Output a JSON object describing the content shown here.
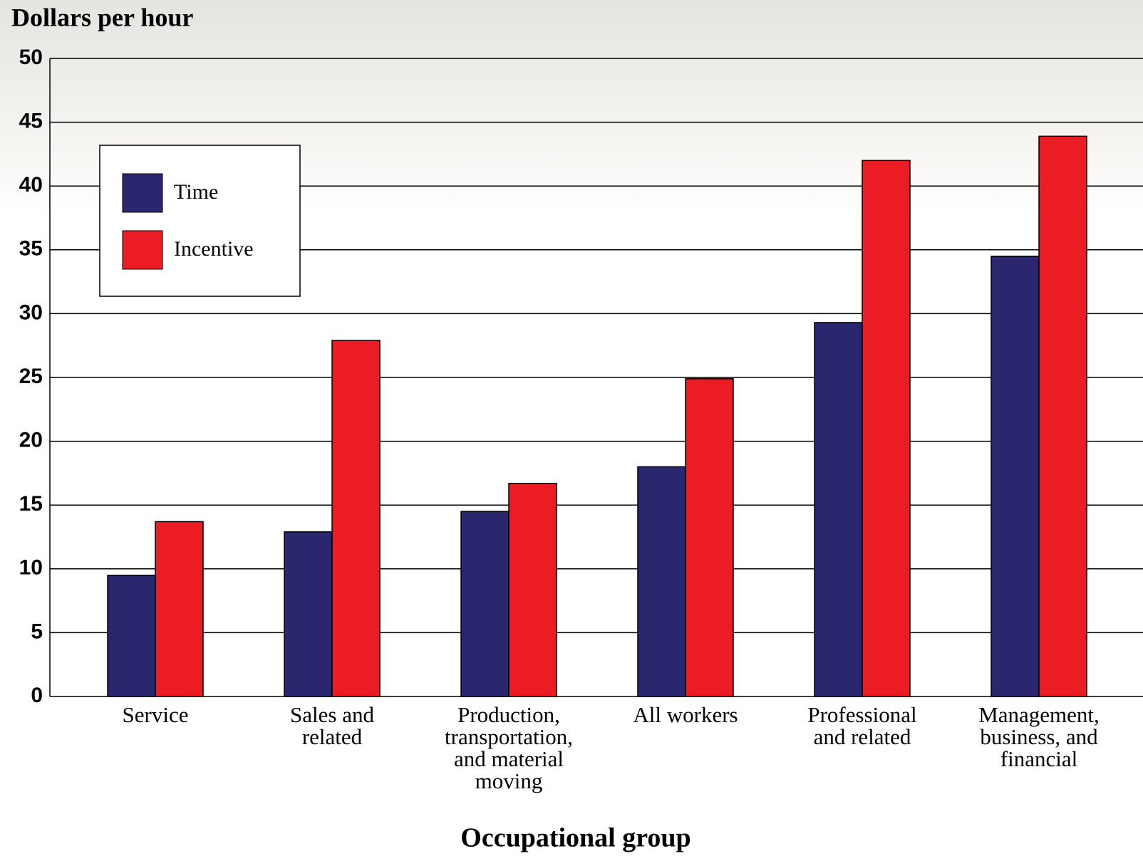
{
  "chart_data": {
    "type": "bar",
    "y_label": "Dollars per hour",
    "x_label": "Occupational group",
    "categories": [
      [
        "Service"
      ],
      [
        "Sales and",
        "related"
      ],
      [
        "Production,",
        "transportation,",
        "and material",
        "moving"
      ],
      [
        "All workers"
      ],
      [
        "Professional",
        "and related"
      ],
      [
        "Management,",
        "business, and",
        "financial"
      ]
    ],
    "series": [
      {
        "name": "Time",
        "color": "#2a276e",
        "values": [
          9.5,
          12.9,
          14.5,
          18.0,
          29.3,
          34.5
        ]
      },
      {
        "name": "Incentive",
        "color": "#ec1c24",
        "values": [
          13.7,
          27.9,
          16.7,
          24.9,
          42.0,
          43.9
        ]
      }
    ],
    "ylim": [
      0,
      50
    ],
    "yticks": [
      0,
      5,
      10,
      15,
      20,
      25,
      30,
      35,
      40,
      45,
      50
    ],
    "grid": true,
    "legend": "upper-left"
  }
}
